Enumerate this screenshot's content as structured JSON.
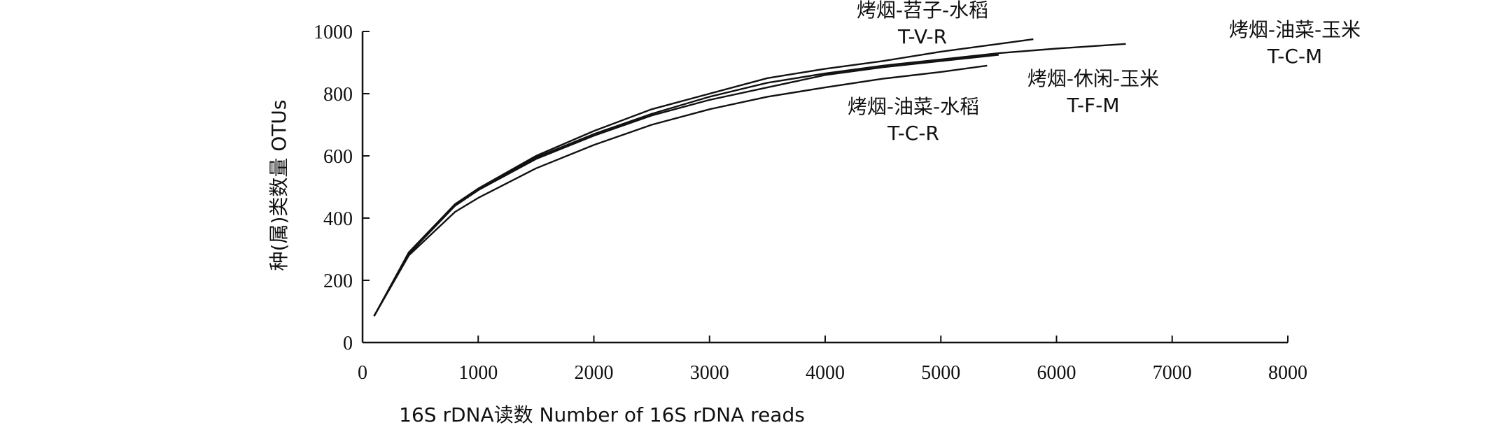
{
  "chart_data": {
    "type": "line",
    "title": "",
    "xlabel": "16S rDNA读数 Number of 16S rDNA reads",
    "ylabel": "种(属)类数量 OTUs",
    "xlim": [
      0,
      8000
    ],
    "ylim": [
      0,
      1000
    ],
    "xticks": [
      "0",
      "1000",
      "2000",
      "3000",
      "4000",
      "5000",
      "6000",
      "7000",
      "8000"
    ],
    "yticks": [
      "0",
      "200",
      "400",
      "600",
      "800",
      "1000"
    ],
    "grid": false,
    "series": [
      {
        "name": "T-V-R",
        "label_zh": "烤烟-苕子-水稻",
        "x": [
          100,
          400,
          800,
          1000,
          1500,
          2000,
          2500,
          3000,
          3500,
          4000,
          4500,
          5000,
          5500,
          5800
        ],
        "y": [
          85,
          290,
          445,
          495,
          600,
          680,
          750,
          800,
          850,
          880,
          905,
          935,
          960,
          975
        ]
      },
      {
        "name": "T-C-M",
        "label_zh": "烤烟-油菜-玉米",
        "x": [
          100,
          400,
          800,
          1000,
          1500,
          2000,
          2500,
          3000,
          3500,
          4000,
          4500,
          5000,
          5500,
          6000,
          6600
        ],
        "y": [
          85,
          285,
          440,
          490,
          595,
          670,
          735,
          790,
          835,
          865,
          890,
          910,
          930,
          945,
          960
        ]
      },
      {
        "name": "T-F-M",
        "label_zh": "烤烟-休闲-玉米",
        "x": [
          100,
          400,
          800,
          1000,
          1500,
          2000,
          2500,
          3000,
          3500,
          4000,
          4500,
          5000,
          5500
        ],
        "y": [
          85,
          285,
          440,
          490,
          590,
          665,
          730,
          780,
          820,
          860,
          885,
          905,
          925
        ]
      },
      {
        "name": "T-C-R",
        "label_zh": "烤烟-油菜-水稻",
        "x": [
          100,
          400,
          800,
          1000,
          1500,
          2000,
          2500,
          3000,
          3500,
          4000,
          4500,
          5000,
          5400
        ],
        "y": [
          85,
          280,
          420,
          465,
          560,
          635,
          700,
          750,
          790,
          820,
          848,
          870,
          890
        ]
      }
    ]
  }
}
